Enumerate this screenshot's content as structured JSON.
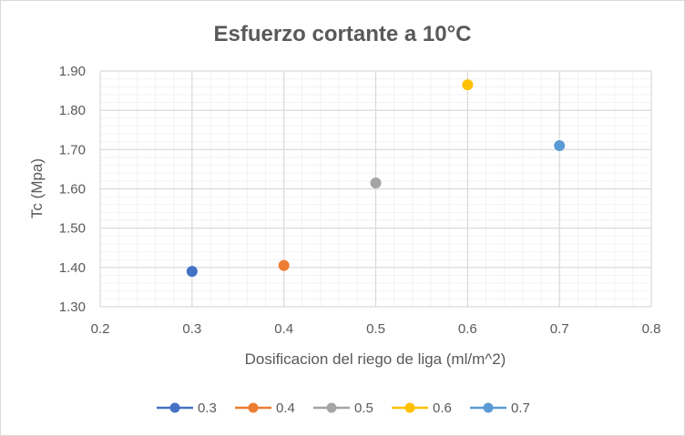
{
  "chart_data": {
    "type": "scatter",
    "title": "Esfuerzo cortante a 10°C",
    "xlabel": "Dosificacion del riego de liga  (ml/m^2)",
    "ylabel": "Tc (Mpa)",
    "xlim": [
      0.2,
      0.8
    ],
    "ylim": [
      1.3,
      1.9
    ],
    "x_ticks": [
      "0.2",
      "0.3",
      "0.4",
      "0.5",
      "0.6",
      "0.7",
      "0.8"
    ],
    "y_ticks": [
      "1.30",
      "1.40",
      "1.50",
      "1.60",
      "1.70",
      "1.80",
      "1.90"
    ],
    "grid": true,
    "legend_position": "bottom",
    "series": [
      {
        "name": "0.3",
        "color": "#4472C4",
        "x": [
          0.3
        ],
        "y": [
          1.39
        ]
      },
      {
        "name": "0.4",
        "color": "#ED7D31",
        "x": [
          0.4
        ],
        "y": [
          1.405
        ]
      },
      {
        "name": "0.5",
        "color": "#A5A5A5",
        "x": [
          0.5
        ],
        "y": [
          1.615
        ]
      },
      {
        "name": "0.6",
        "color": "#FFC000",
        "x": [
          0.6
        ],
        "y": [
          1.865
        ]
      },
      {
        "name": "0.7",
        "color": "#5B9BD5",
        "x": [
          0.7
        ],
        "y": [
          1.71
        ]
      }
    ]
  }
}
